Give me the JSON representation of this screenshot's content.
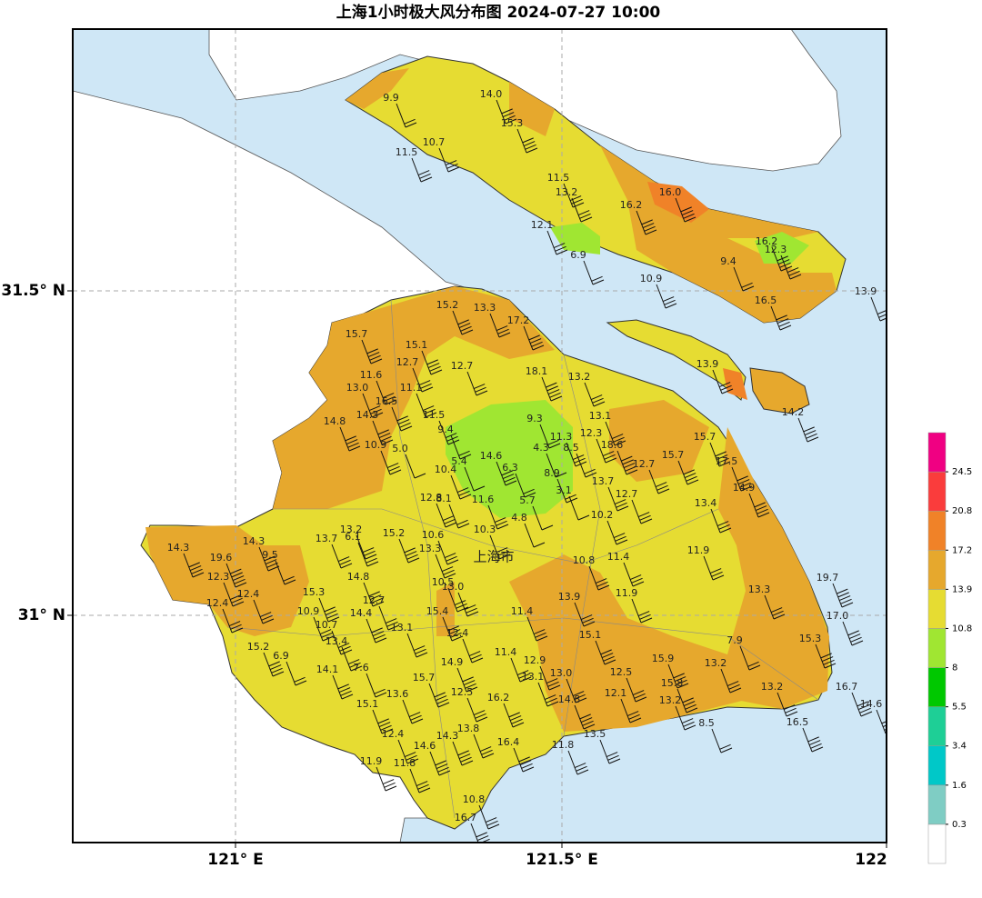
{
  "title": "上海1小时极大风分布图 2024-07-27 10:00",
  "x_axis_labels": [
    "121° E",
    "121.5° E",
    "122"
  ],
  "y_axis_labels": [
    "31.5° N",
    "31° N"
  ],
  "city_label": "上海市",
  "colorbar": {
    "levels": [
      0.3,
      1.6,
      3.4,
      5.5,
      8,
      10.8,
      13.9,
      17.2,
      20.8,
      24.5
    ],
    "colors": [
      "#ffffff",
      "#7fcdc4",
      "#00c8c8",
      "#1ecf96",
      "#00c800",
      "#a0e632",
      "#e6dc32",
      "#e6a82d",
      "#f08228",
      "#fa3c3c",
      "#f00082"
    ]
  },
  "stations": [
    "9.9",
    "14.0",
    "15.3",
    "10.7",
    "11.5",
    "11.5",
    "13.2",
    "16.0",
    "16.2",
    "12.1",
    "16.2",
    "12.3",
    "6.9",
    "9.4",
    "10.9",
    "16.5",
    "13.9",
    "13.9",
    "14.2",
    "15.2",
    "13.3",
    "17.2",
    "15.7",
    "15.1",
    "12.7",
    "12.7",
    "18.1",
    "13.2",
    "11.6",
    "13.0",
    "11.1",
    "16.5",
    "14.3",
    "11.5",
    "14.8",
    "9.3",
    "13.1",
    "9.4",
    "11.3",
    "12.3",
    "10.9",
    "5.0",
    "4.3",
    "8.5",
    "18.6",
    "15.7",
    "15.7",
    "17.5",
    "14.6",
    "5.4",
    "10.4",
    "6.3",
    "8.9",
    "12.7",
    "13.7",
    "3.1",
    "14.9",
    "12.8",
    "8.1",
    "11.6",
    "5.7",
    "12.7",
    "13.4",
    "4.8",
    "10.2",
    "10.3",
    "13.2",
    "13.7",
    "6.1",
    "15.2",
    "10.6",
    "14.3",
    "14.3",
    "19.6",
    "9.5",
    "13.3",
    "10.8",
    "11.4",
    "11.9",
    "12.3",
    "14.8",
    "10.5",
    "13.0",
    "19.7",
    "15.3",
    "12.4",
    "11.9",
    "13.3",
    "12.7",
    "12.4",
    "13.9",
    "15.4",
    "10.9",
    "14.4",
    "11.4",
    "17.0",
    "10.7",
    "13.1",
    "12.4",
    "15.1",
    "7.9",
    "15.3",
    "13.4",
    "15.2",
    "6.9",
    "11.4",
    "12.9",
    "15.9",
    "13.2",
    "14.9",
    "14.1",
    "7.6",
    "13.1",
    "13.0",
    "12.5",
    "15.8",
    "15.7",
    "13.2",
    "12.5",
    "13.6",
    "16.2",
    "12.1",
    "16.7",
    "14.8",
    "13.2",
    "14.6",
    "15.1",
    "8.5",
    "16.5",
    "13.8",
    "12.4",
    "14.3",
    "13.5",
    "14.6",
    "16.4",
    "11.8",
    "11.9",
    "11.8",
    "10.8",
    "16.7"
  ]
}
